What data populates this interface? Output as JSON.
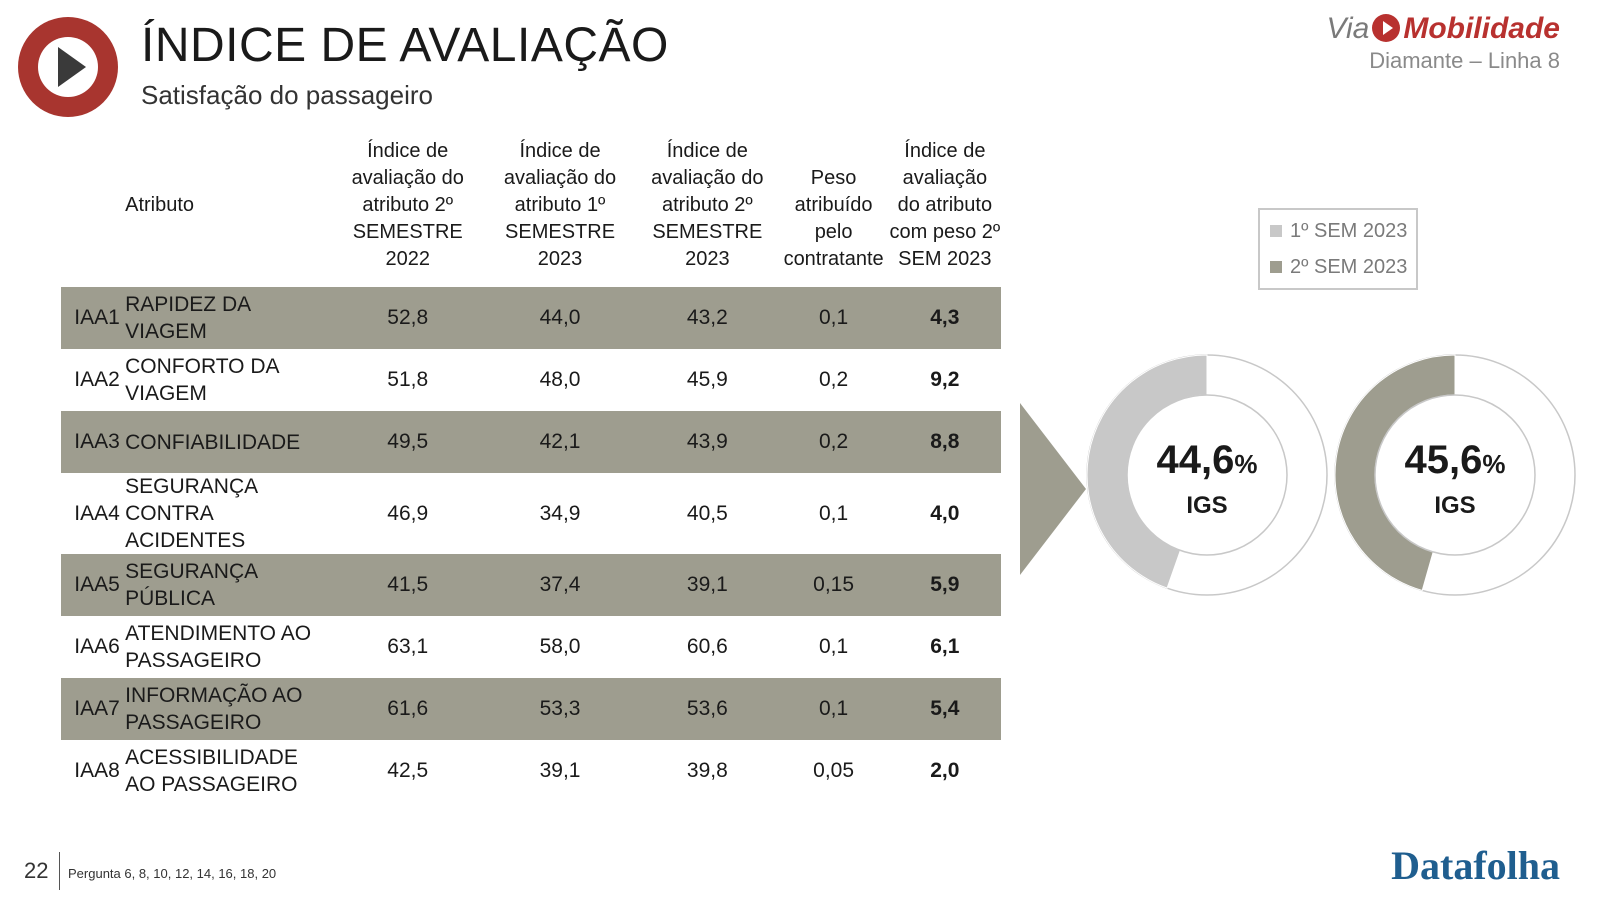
{
  "header": {
    "title": "ÍNDICE DE AVALIAÇÃO",
    "subtitle": "Satisfação do passageiro"
  },
  "brand": {
    "via": "Via",
    "mobilidade": "Mobilidade",
    "line": "Diamante – Linha 8",
    "color": "#b8312f"
  },
  "table": {
    "headers": {
      "atributo": "Atributo",
      "col1": "Índice de avaliação do atributo 2º SEMESTRE 2022",
      "col2": "Índice de avaliação do atributo 1º SEMESTRE 2023",
      "col3": "Índice de avaliação do atributo 2º SEMESTRE 2023",
      "col4": "Peso atribuído pelo contratante",
      "col5": "Índice de avaliação do atributo com peso 2º SEM 2023"
    },
    "rows": [
      {
        "code": "IAA1",
        "name": "RAPIDEZ DA VIAGEM",
        "v1": "52,8",
        "v2": "44,0",
        "v3": "43,2",
        "peso": "0,1",
        "final": "4,3"
      },
      {
        "code": "IAA2",
        "name": "CONFORTO DA VIAGEM",
        "v1": "51,8",
        "v2": "48,0",
        "v3": "45,9",
        "peso": "0,2",
        "final": "9,2"
      },
      {
        "code": "IAA3",
        "name": "CONFIABILIDADE",
        "v1": "49,5",
        "v2": "42,1",
        "v3": "43,9",
        "peso": "0,2",
        "final": "8,8"
      },
      {
        "code": "IAA4",
        "name": "SEGURANÇA CONTRA ACIDENTES",
        "v1": "46,9",
        "v2": "34,9",
        "v3": "40,5",
        "peso": "0,1",
        "final": "4,0"
      },
      {
        "code": "IAA5",
        "name": "SEGURANÇA PÚBLICA",
        "v1": "41,5",
        "v2": "37,4",
        "v3": "39,1",
        "peso": "0,15",
        "final": "5,9"
      },
      {
        "code": "IAA6",
        "name": "ATENDIMENTO AO PASSAGEIRO",
        "v1": "63,1",
        "v2": "58,0",
        "v3": "60,6",
        "peso": "0,1",
        "final": "6,1"
      },
      {
        "code": "IAA7",
        "name": "INFORMAÇÃO AO PASSAGEIRO",
        "v1": "61,6",
        "v2": "53,3",
        "v3": "53,6",
        "peso": "0,1",
        "final": "5,4"
      },
      {
        "code": "IAA8",
        "name": "ACESSIBILIDADE AO PASSAGEIRO",
        "v1": "42,5",
        "v2": "39,1",
        "v3": "39,8",
        "peso": "0,05",
        "final": "2,0"
      }
    ],
    "shade_color": "#9e9d8f"
  },
  "legend": {
    "items": [
      {
        "label": "1º SEM 2023",
        "color": "#c8c8c8"
      },
      {
        "label": "2º SEM 2023",
        "color": "#9e9d8f"
      }
    ]
  },
  "chart_data": {
    "type": "pie",
    "series": [
      {
        "name": "1º SEM 2023",
        "value": 44.6,
        "label": "44,6",
        "unit": "%",
        "caption": "IGS",
        "color": "#c8c8c8"
      },
      {
        "name": "2º SEM 2023",
        "value": 45.6,
        "label": "45,6",
        "unit": "%",
        "caption": "IGS",
        "color": "#9e9d8f"
      }
    ],
    "max": 100
  },
  "footer": {
    "page_number": "22",
    "note": "Pergunta 6, 8, 10, 12, 14, 16, 18, 20",
    "logo": "Datafolha"
  }
}
